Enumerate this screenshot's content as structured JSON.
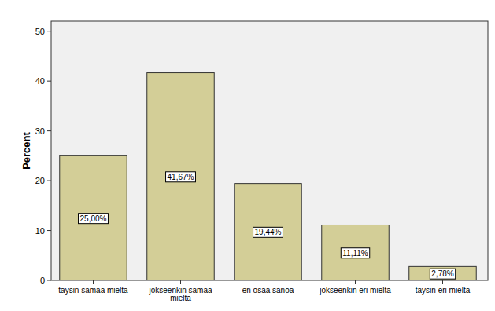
{
  "chart_data": {
    "type": "bar",
    "ylabel": "Percent",
    "categories": [
      "täysin samaa mieltä",
      "jokseenkin samaa mieltä",
      "en osaa sanoa",
      "jokseenkin eri mieltä",
      "täysin eri mieltä"
    ],
    "values": [
      25.0,
      41.67,
      19.44,
      11.11,
      2.78
    ],
    "value_labels": [
      "25,00%",
      "41,67%",
      "19,44%",
      "11,11%",
      "2,78%"
    ],
    "color": "#d3ce97",
    "ylim": [
      0,
      52
    ],
    "yticks": [
      0,
      10,
      20,
      30,
      40,
      50
    ],
    "grid": false,
    "data_labels": true
  }
}
